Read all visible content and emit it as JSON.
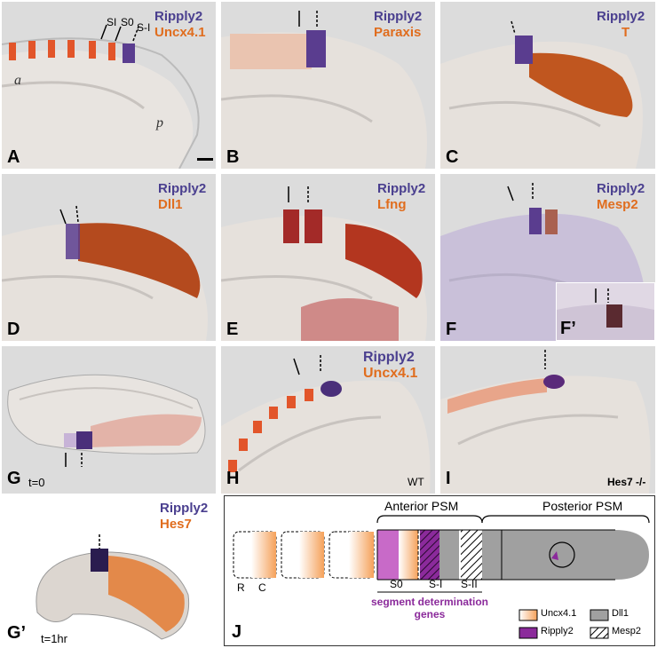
{
  "panels": {
    "A": {
      "label": "A",
      "gene1": "Ripply2",
      "gene2": "Uncx4.1",
      "marks": [
        "SI",
        "S0",
        "S-I"
      ],
      "axis_a": "a",
      "axis_p": "p"
    },
    "B": {
      "label": "B",
      "gene1": "Ripply2",
      "gene2": "Paraxis"
    },
    "C": {
      "label": "C",
      "gene1": "Ripply2",
      "gene2": "T"
    },
    "D": {
      "label": "D",
      "gene1": "Ripply2",
      "gene2": "Dll1"
    },
    "E": {
      "label": "E",
      "gene1": "Ripply2",
      "gene2": "Lfng"
    },
    "F": {
      "label": "F",
      "gene1": "Ripply2",
      "gene2": "Mesp2",
      "inset": "F’"
    },
    "G": {
      "label": "G",
      "time": "t=0"
    },
    "G2": {
      "label": "G’",
      "time": "t=1hr"
    },
    "G_genes": {
      "gene1": "Ripply2",
      "gene2": "Hes7"
    },
    "H": {
      "label": "H",
      "gene1": "Ripply2",
      "gene2": "Uncx4.1",
      "tag": "WT"
    },
    "I": {
      "label": "I",
      "tag": "Hes7 -/-"
    }
  },
  "diagram": {
    "label": "J",
    "anterior": "Anterior PSM",
    "posterior": "Posterior PSM",
    "somite_r": "R",
    "somite_c": "C",
    "s0": "S0",
    "s_minus_1": "S-I",
    "s_minus_2": "S-II",
    "determination": "segment determination genes",
    "legend": {
      "uncx": "Uncx4.1",
      "dll1": "Dll1",
      "ripply2": "Ripply2",
      "mesp2": "Mesp2"
    },
    "colors": {
      "uncx": "#f5a15a",
      "ripply2": "#8b2a9b",
      "dll1": "#a0a0a0",
      "s0": "#c86ac8"
    }
  }
}
